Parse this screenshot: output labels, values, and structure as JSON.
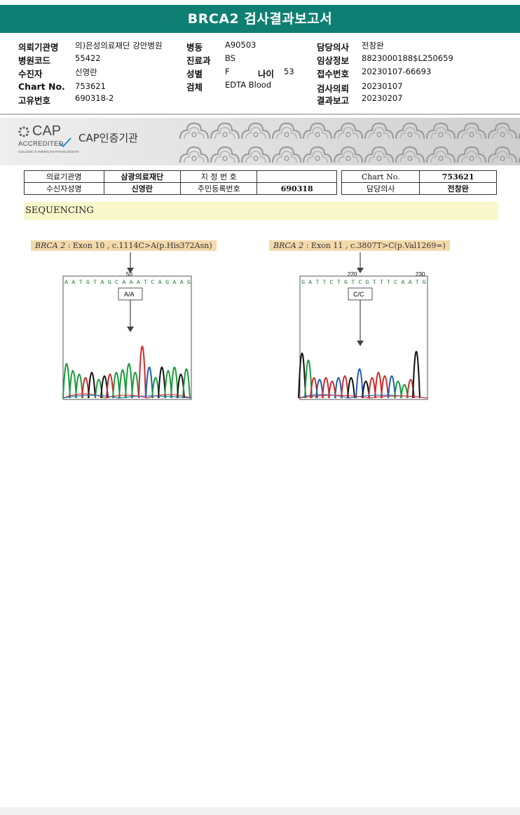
{
  "title": "BRCA2 검사결과보고서",
  "info": {
    "col1": [
      {
        "label": "의뢰기관명",
        "value": "의)은성의료재단 강안병원"
      },
      {
        "label": "병원코드",
        "value": "55422"
      },
      {
        "label": "수진자",
        "value": "신영란"
      },
      {
        "label": "Chart No.",
        "value": "753621"
      },
      {
        "label": "고유번호",
        "value": "690318-2"
      }
    ],
    "col2": [
      {
        "label": "병동",
        "value": "A90503"
      },
      {
        "label": "진료과",
        "value": "BS"
      },
      {
        "label": "성별",
        "value": "F"
      },
      {
        "label": "검체",
        "value": "EDTA Blood"
      }
    ],
    "age": {
      "label": "나이",
      "value": "53"
    },
    "col3": [
      {
        "label": "담당의사",
        "value": "전창완"
      },
      {
        "label": "임상정보",
        "value": "8823000188$L250659"
      },
      {
        "label": "접수번호",
        "value": "20230107-66693"
      },
      {
        "label": "검사의뢰",
        "value": "20230107"
      },
      {
        "label": "결과보고",
        "value": "20230207"
      }
    ]
  },
  "cap": {
    "logo_big": "CAP",
    "logo_accredited": "ACCREDITED",
    "logo_college": "COLLEGE of AMERICAN PATHOLOGISTS",
    "cert_label": "CAP인증기관",
    "colors": {
      "banner": "#e3e3e3",
      "pattern": "#a8a8a8"
    }
  },
  "patient_table": {
    "row1": {
      "inst_label": "의료기관명",
      "inst_value": "삼광의료재단",
      "desig_label": "지 정 번 호",
      "desig_value": "",
      "chart_label": "Chart No.",
      "chart_value": "753621"
    },
    "row2": {
      "name_label": "수신자성명",
      "name_value": "신영란",
      "rrn_label": "주민등록번호",
      "rrn_value": "690318",
      "doctor_label": "담당의사",
      "doctor_value": "전창완"
    }
  },
  "section_title": "SEQUENCING",
  "mutations": [
    {
      "gene": "BRCA 2",
      "detail": ": Exon 10 , c.1114C>A(p.His372Asn)",
      "position_label": "50",
      "end_label": "",
      "sequence": "A A T G T A G C A A A T C A G A A G",
      "genotype": "A/A"
    },
    {
      "gene": "BRCA 2",
      "detail": ": Exon 11 , c.3807T>C(p.Val1269=)",
      "position_label": "220",
      "end_label": "230",
      "sequence": "G A T T C T G T C G T T T C A A T G",
      "genotype": "C/C"
    }
  ],
  "colors": {
    "title_bar": "#0e7f72",
    "seq_bar": "#f8f8cc",
    "mutation_label": "#f3d9ab",
    "base_A": "#1a9a3a",
    "base_C": "#1f5fb0",
    "base_G": "#111111",
    "base_T": "#d02b2b"
  }
}
